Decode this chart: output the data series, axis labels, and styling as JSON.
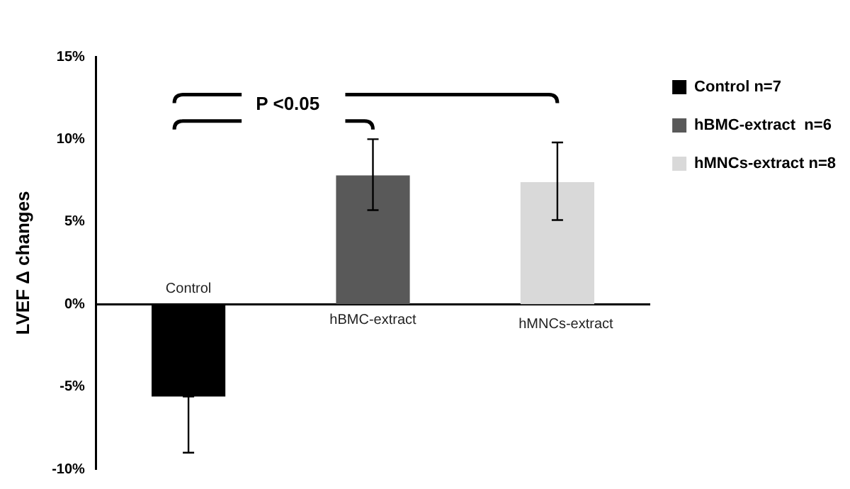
{
  "chart_data": {
    "type": "bar",
    "ylabel": "LVEF Δ changes",
    "categories": [
      "Control",
      "hBMC-extract",
      "hMNCs-extract"
    ],
    "series": [
      {
        "name": "Control n=7",
        "color": "#000000",
        "values": [
          -5.6,
          null,
          null
        ],
        "errors": [
          [
            -9.0,
            -5.6
          ],
          null,
          null
        ]
      },
      {
        "name": "hBMC-extract  n=6",
        "color": "#595959",
        "values": [
          null,
          7.8,
          null
        ],
        "errors": [
          null,
          [
            5.7,
            10.0
          ],
          null
        ]
      },
      {
        "name": "hMNCs-extract n=8",
        "color": "#d9d9d9",
        "values": [
          null,
          null,
          7.4
        ],
        "errors": [
          null,
          null,
          [
            5.1,
            9.8
          ]
        ]
      }
    ],
    "ylim": [
      -10,
      15
    ],
    "yticks": [
      {
        "value": -10,
        "label": "-10%"
      },
      {
        "value": -5,
        "label": "-5%"
      },
      {
        "value": 0,
        "label": "0%"
      },
      {
        "value": 5,
        "label": "5%"
      },
      {
        "value": 10,
        "label": "10%"
      },
      {
        "value": 15,
        "label": "15%"
      }
    ],
    "grid": false,
    "legend": "top right",
    "annotations": [
      "P <0.05"
    ]
  }
}
